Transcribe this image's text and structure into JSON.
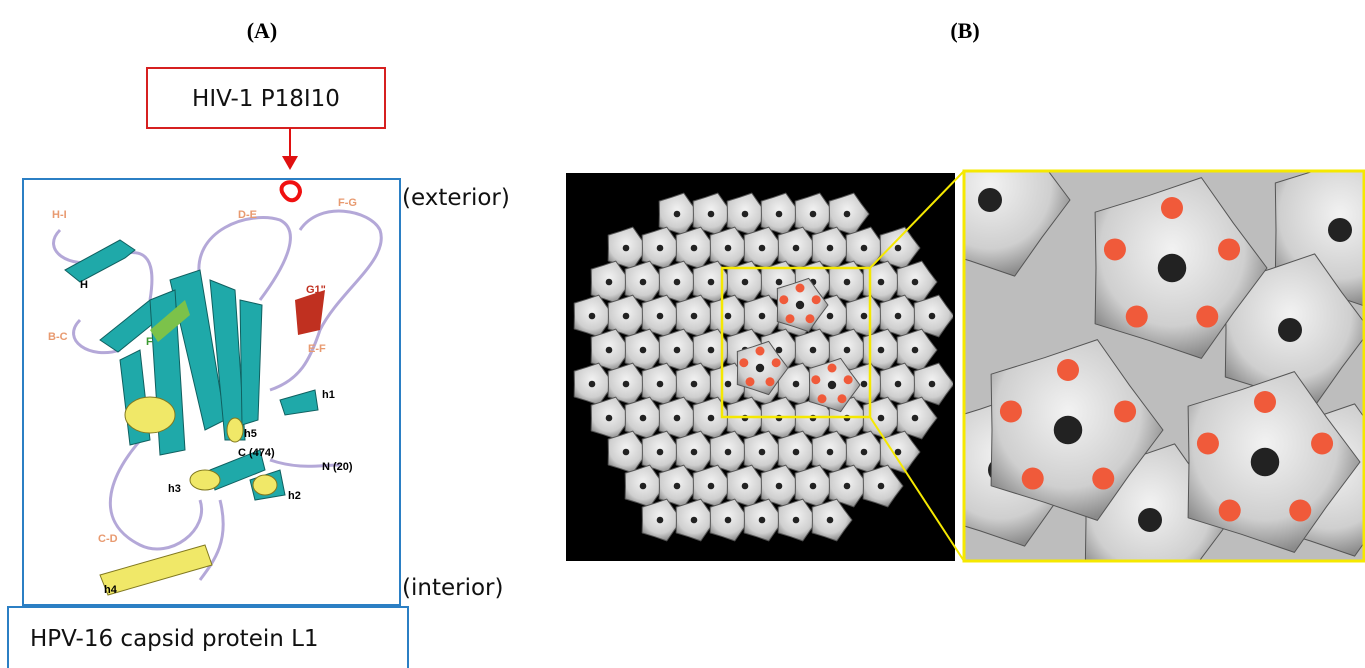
{
  "panel_labels": {
    "a": "(A)",
    "b": "(B)"
  },
  "panel_a": {
    "insert_label": "HIV-1 P18I10",
    "exterior_label": "(exterior)",
    "interior_label": "(interior)",
    "protein_label": "HPV-16 capsid  protein L1",
    "structure_labels": [
      "H-I",
      "D-E",
      "F-G",
      "H",
      "G1\"",
      "B-C",
      "E-F",
      "F",
      "h1",
      "h5",
      "C (474)",
      "N (20)",
      "h3",
      "h2",
      "C-D",
      "h4"
    ]
  }
}
